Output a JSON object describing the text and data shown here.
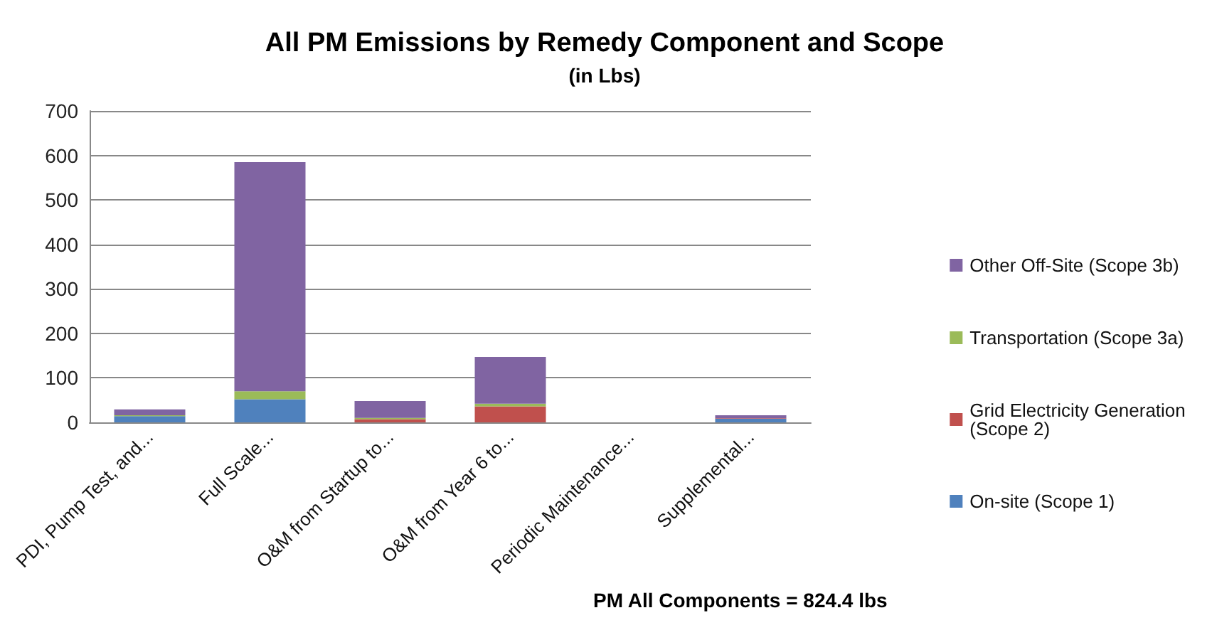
{
  "chart_data": {
    "type": "bar",
    "title": "All PM Emissions by Remedy Component and Scope",
    "subtitle": "(in Lbs)",
    "categories": [
      "PDI, Pump Test, and...",
      "Full Scale...",
      "O&M from Startup to...",
      "O&M from Year 6 to...",
      "Periodic Maintenance...",
      "Supplemental..."
    ],
    "series": [
      {
        "name": "On-site (Scope 1)",
        "color": "#4f81bd",
        "values": [
          14,
          52,
          0,
          0,
          0,
          8
        ]
      },
      {
        "name": "Grid Electricity Generation (Scope 2)",
        "color": "#c0504d",
        "values": [
          0,
          0,
          7,
          36,
          0,
          1
        ]
      },
      {
        "name": "Transportation (Scope 3a)",
        "color": "#9bbb59",
        "values": [
          2,
          18,
          3,
          6,
          0,
          0
        ]
      },
      {
        "name": "Other Off-Site (Scope 3b)",
        "color": "#8064a2",
        "values": [
          13,
          515,
          38,
          105,
          null,
          7
        ]
      }
    ],
    "stacked": true,
    "ylim": [
      0,
      700
    ],
    "yticks": [
      0,
      100,
      200,
      300,
      400,
      500,
      600,
      700
    ],
    "grid": "y",
    "legend": "right",
    "annotations": [
      "PM All Components = 824.4 lbs"
    ]
  }
}
